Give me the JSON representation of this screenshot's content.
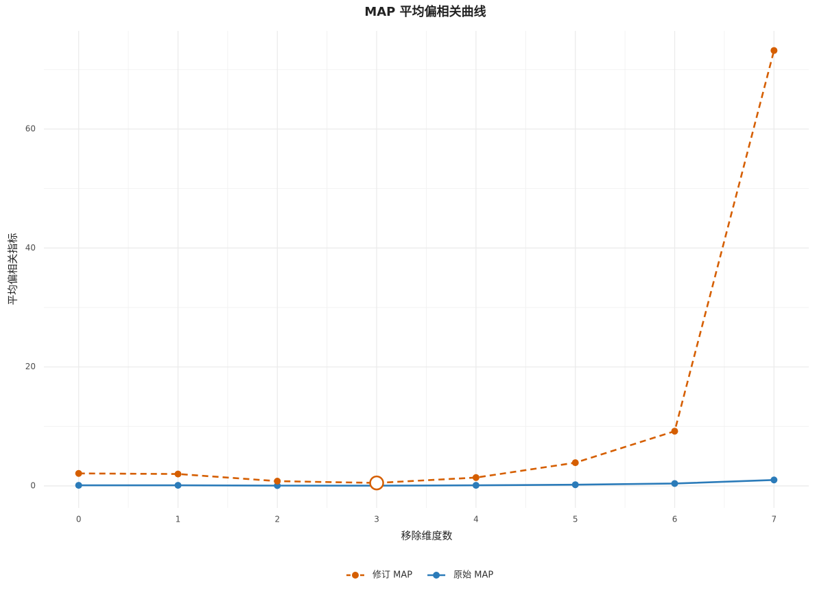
{
  "chart_data": {
    "type": "line",
    "title": "MAP 平均偏相关曲线",
    "x_label": "移除维度数",
    "y_label": "平均偏相关指标",
    "x": [
      0,
      1,
      2,
      3,
      4,
      5,
      6,
      7
    ],
    "series": [
      {
        "name": "修订 MAP",
        "color": "#d55e00",
        "dash": true,
        "values": [
          2.1,
          2.0,
          0.8,
          0.5,
          1.4,
          3.9,
          9.2,
          73.2
        ]
      },
      {
        "name": "原始 MAP",
        "color": "#2b7bb9",
        "dash": false,
        "values": [
          0.1,
          0.1,
          0.05,
          0.04,
          0.1,
          0.2,
          0.4,
          1.0
        ]
      }
    ],
    "highlight_index": 3,
    "xlim": [
      -0.35,
      7.35
    ],
    "ylim": [
      -3.7,
      76.5
    ],
    "xticks": [
      0,
      1,
      2,
      3,
      4,
      5,
      6,
      7
    ],
    "yticks": [
      0,
      20,
      40,
      60
    ],
    "grid": true,
    "minor_grid": true,
    "legend": "bottom"
  }
}
